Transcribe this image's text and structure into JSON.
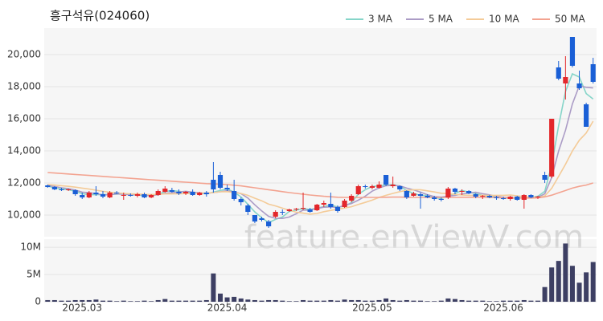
{
  "chart_data": {
    "type": "candlestick",
    "title": "흥구석유(024060)",
    "watermark": "feature.enViewV.com",
    "categories": [
      null,
      null,
      null,
      null,
      null,
      "2025.03",
      null,
      null,
      null,
      null,
      null,
      null,
      null,
      null,
      null,
      null,
      null,
      null,
      null,
      null,
      null,
      null,
      null,
      null,
      null,
      null,
      "2025.04",
      null,
      null,
      null,
      null,
      null,
      null,
      null,
      null,
      null,
      null,
      null,
      null,
      null,
      null,
      null,
      null,
      null,
      null,
      null,
      null,
      "2025.05",
      null,
      null,
      null,
      null,
      null,
      null,
      null,
      null,
      null,
      null,
      null,
      null,
      null,
      null,
      null,
      null,
      null,
      null,
      "2025.06",
      null,
      null,
      null,
      null,
      null,
      null,
      null,
      null,
      null,
      null,
      null,
      null,
      null
    ],
    "open": [
      11850,
      11750,
      11600,
      11550,
      11550,
      11250,
      11100,
      11400,
      11300,
      11100,
      11400,
      11200,
      11250,
      11200,
      11300,
      11100,
      11250,
      11450,
      11550,
      11450,
      11350,
      11450,
      11250,
      11400,
      12200,
      12500,
      11700,
      11500,
      11000,
      10600,
      10000,
      9800,
      9600,
      9900,
      10200,
      10250,
      10350,
      10400,
      10350,
      10300,
      10650,
      10700,
      10500,
      10500,
      10900,
      11300,
      11800,
      11700,
      11700,
      12500,
      11800,
      11800,
      11500,
      11200,
      11300,
      11200,
      11100,
      11000,
      11100,
      11650,
      11450,
      11500,
      11300,
      11150,
      11200,
      11100,
      11050,
      11000,
      11150,
      10950,
      11250,
      11100,
      12500,
      12400,
      19200,
      18200,
      21100,
      18200,
      16900,
      19400
    ],
    "high": [
      11900,
      11800,
      11700,
      11650,
      11600,
      11400,
      11500,
      11800,
      11500,
      11500,
      11500,
      11400,
      11350,
      11400,
      11400,
      11300,
      11600,
      11800,
      11700,
      11600,
      11500,
      11600,
      11450,
      11500,
      13300,
      12700,
      11900,
      12200,
      11100,
      10700,
      10000,
      9900,
      9700,
      10300,
      10350,
      10400,
      10450,
      11400,
      10450,
      10700,
      10900,
      11400,
      10600,
      11000,
      11300,
      11900,
      11900,
      11900,
      12100,
      12500,
      12400,
      11850,
      11550,
      11450,
      11400,
      11300,
      11200,
      11100,
      11750,
      11700,
      11600,
      11550,
      11350,
      11250,
      11250,
      11200,
      11150,
      11200,
      11200,
      11300,
      11300,
      11200,
      12700,
      16000,
      19600,
      19900,
      21100,
      19000,
      17000,
      19800
    ],
    "low": [
      11700,
      11550,
      11500,
      11500,
      11200,
      11000,
      11050,
      11200,
      11050,
      11050,
      11300,
      10950,
      11150,
      11100,
      11050,
      11050,
      11200,
      11400,
      11400,
      11250,
      11250,
      11200,
      11200,
      11150,
      11400,
      11600,
      11500,
      10900,
      10600,
      10000,
      9500,
      9600,
      9200,
      9800,
      10000,
      10200,
      10250,
      10300,
      10150,
      10250,
      10500,
      10400,
      10150,
      10450,
      10800,
      11250,
      11650,
      11600,
      11650,
      11800,
      11700,
      11500,
      11000,
      11150,
      10400,
      11050,
      10900,
      10850,
      11000,
      11300,
      11250,
      11300,
      11050,
      11000,
      11050,
      10950,
      10950,
      10900,
      10900,
      10400,
      11050,
      11000,
      12000,
      12300,
      18400,
      17200,
      19200,
      17800,
      15500,
      18200
    ],
    "close": [
      11750,
      11600,
      11550,
      11600,
      11300,
      11100,
      11400,
      11300,
      11150,
      11400,
      11350,
      11250,
      11200,
      11300,
      11100,
      11250,
      11500,
      11650,
      11450,
      11350,
      11450,
      11250,
      11400,
      11300,
      11600,
      11700,
      11600,
      11000,
      10800,
      10200,
      9600,
      9700,
      9300,
      10200,
      10150,
      10350,
      10400,
      10450,
      10200,
      10650,
      10750,
      10500,
      10250,
      10900,
      11200,
      11800,
      11750,
      11800,
      11900,
      11900,
      11900,
      11600,
      11100,
      11350,
      11200,
      11100,
      11000,
      10950,
      11650,
      11450,
      11500,
      11350,
      11150,
      11200,
      11100,
      11050,
      11000,
      11150,
      10950,
      11250,
      11100,
      11150,
      12200,
      16000,
      18500,
      18600,
      19300,
      17900,
      15500,
      18300
    ],
    "up_color": "#e3272b",
    "down_color": "#1a5fd6",
    "ylim": [
      8650,
      21650
    ],
    "yticks": [
      {
        "value": 10000,
        "label": "10,000"
      },
      {
        "value": 12000,
        "label": "12,000"
      },
      {
        "value": 14000,
        "label": "14,000"
      },
      {
        "value": 16000,
        "label": "16,000"
      },
      {
        "value": 18000,
        "label": "18,000"
      },
      {
        "value": 20000,
        "label": "20,000"
      }
    ],
    "grid": true,
    "series": [
      {
        "name": "3 MA",
        "color": "#86d5c9",
        "values": [
          11800,
          11700,
          11630,
          11580,
          11480,
          11330,
          11270,
          11270,
          11280,
          11280,
          11300,
          11330,
          11270,
          11250,
          11200,
          11220,
          11280,
          11470,
          11530,
          11480,
          11420,
          11350,
          11370,
          11320,
          11430,
          11530,
          11630,
          11430,
          11130,
          10670,
          10200,
          9830,
          9530,
          9730,
          9880,
          10230,
          10300,
          10400,
          10350,
          10430,
          10530,
          10630,
          10500,
          10550,
          10780,
          11300,
          11580,
          11780,
          11820,
          11870,
          11900,
          11800,
          11530,
          11350,
          11220,
          11220,
          11100,
          11020,
          11200,
          11350,
          11530,
          11430,
          11330,
          11230,
          11150,
          11120,
          11050,
          11070,
          11030,
          11120,
          11100,
          11170,
          11480,
          13120,
          15570,
          17700,
          18800,
          18600,
          17570,
          17230
        ]
      },
      {
        "name": "5 MA",
        "color": "#ab9cc6",
        "values": [
          11850,
          11780,
          11700,
          11650,
          11560,
          11430,
          11390,
          11340,
          11250,
          11270,
          11320,
          11290,
          11270,
          11300,
          11240,
          11220,
          11270,
          11360,
          11390,
          11440,
          11480,
          11430,
          11380,
          11350,
          11400,
          11450,
          11520,
          11440,
          11340,
          11060,
          10640,
          10260,
          9920,
          9800,
          9790,
          9880,
          10080,
          10310,
          10310,
          10410,
          10490,
          10510,
          10470,
          10610,
          10720,
          10930,
          11180,
          11490,
          11690,
          11830,
          11850,
          11820,
          11680,
          11570,
          11430,
          11270,
          11150,
          11120,
          11180,
          11230,
          11310,
          11380,
          11420,
          11330,
          11260,
          11170,
          11100,
          11100,
          11050,
          11080,
          11090,
          11100,
          11330,
          12340,
          13990,
          15290,
          16920,
          18060,
          17960,
          17920
        ]
      },
      {
        "name": "10 MA",
        "color": "#f4cb98",
        "values": [
          11900,
          11870,
          11830,
          11790,
          11740,
          11680,
          11620,
          11550,
          11480,
          11420,
          11380,
          11350,
          11320,
          11310,
          11290,
          11280,
          11290,
          11320,
          11320,
          11330,
          11340,
          11350,
          11370,
          11370,
          11400,
          11450,
          11460,
          11400,
          11350,
          11230,
          11050,
          10890,
          10680,
          10570,
          10430,
          10300,
          10180,
          10120,
          10060,
          10100,
          10210,
          10290,
          10370,
          10440,
          10520,
          10660,
          10790,
          10930,
          11100,
          11230,
          11350,
          11460,
          11540,
          11580,
          11580,
          11510,
          11440,
          11360,
          11340,
          11290,
          11250,
          11230,
          11230,
          11230,
          11220,
          11230,
          11230,
          11250,
          11200,
          11150,
          11110,
          11090,
          11190,
          11670,
          12410,
          13170,
          13990,
          14660,
          15110,
          15850
        ]
      },
      {
        "name": "50 MA",
        "color": "#f3a390",
        "values": [
          12650,
          12620,
          12590,
          12560,
          12530,
          12500,
          12470,
          12440,
          12410,
          12380,
          12350,
          12320,
          12290,
          12260,
          12230,
          12200,
          12170,
          12140,
          12110,
          12080,
          12050,
          12020,
          11990,
          11960,
          11940,
          11920,
          11900,
          11860,
          11820,
          11760,
          11700,
          11640,
          11580,
          11520,
          11460,
          11400,
          11350,
          11300,
          11250,
          11210,
          11170,
          11140,
          11110,
          11100,
          11100,
          11100,
          11100,
          11100,
          11100,
          11110,
          11120,
          11120,
          11110,
          11100,
          11100,
          11100,
          11100,
          11100,
          11100,
          11100,
          11110,
          11110,
          11110,
          11100,
          11100,
          11090,
          11080,
          11070,
          11060,
          11060,
          11060,
          11070,
          11130,
          11240,
          11390,
          11530,
          11680,
          11790,
          11870,
          12000
        ]
      }
    ],
    "volume": {
      "color": "#3d3f63",
      "ylim": [
        0,
        11500000
      ],
      "yticks": [
        0,
        {
          "value": 5000000,
          "label": "5M"
        },
        {
          "value": 10000000,
          "label": "10M"
        }
      ],
      "values": [
        300000,
        300000,
        200000,
        200000,
        300000,
        300000,
        300000,
        400000,
        200000,
        200000,
        100000,
        200000,
        100000,
        100000,
        200000,
        100000,
        300000,
        500000,
        200000,
        200000,
        200000,
        200000,
        200000,
        300000,
        5200000,
        1500000,
        800000,
        900000,
        600000,
        400000,
        300000,
        200000,
        300000,
        300000,
        200000,
        100000,
        100000,
        300000,
        200000,
        200000,
        200000,
        300000,
        200000,
        400000,
        300000,
        300000,
        200000,
        200000,
        300000,
        600000,
        300000,
        200000,
        300000,
        200000,
        200000,
        100000,
        100000,
        200000,
        600000,
        500000,
        300000,
        200000,
        200000,
        200000,
        100000,
        100000,
        200000,
        200000,
        200000,
        300000,
        200000,
        200000,
        2700000,
        6300000,
        7500000,
        10700000,
        6600000,
        3500000,
        5400000,
        7300000
      ]
    }
  }
}
